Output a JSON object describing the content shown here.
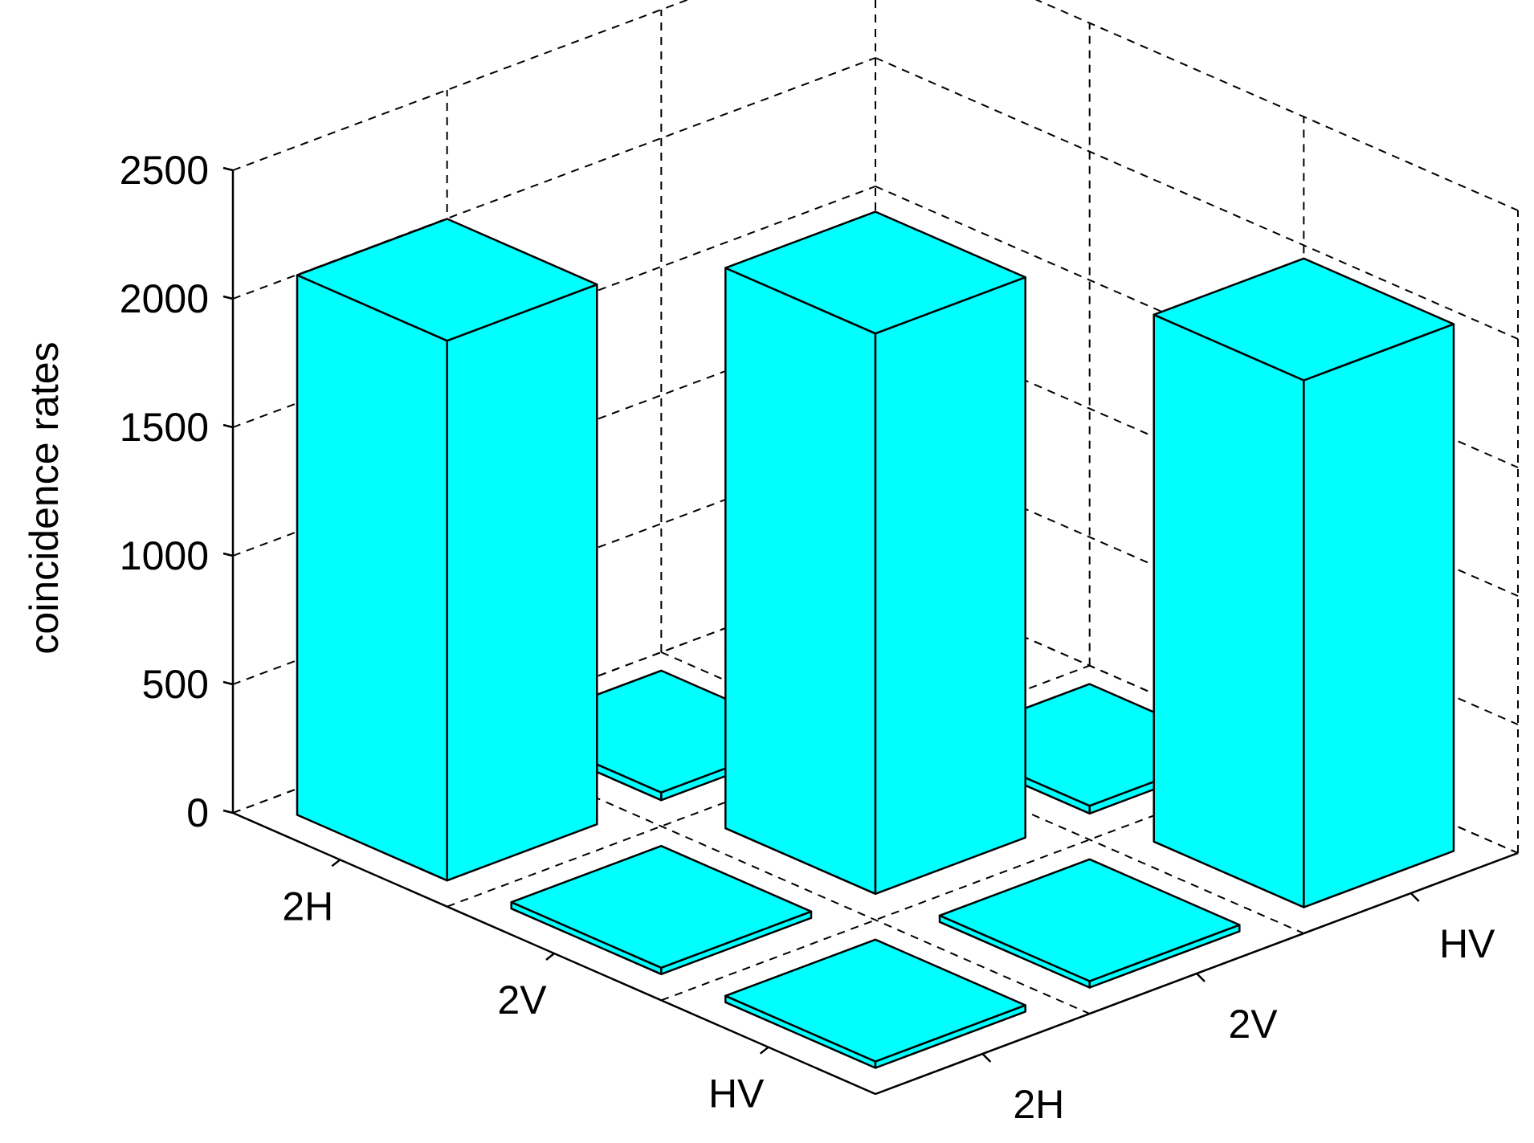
{
  "chart_data": {
    "type": "bar3d",
    "ylabel": "coincidence rates",
    "zlim": [
      0,
      2500
    ],
    "z_ticks": [
      0,
      500,
      1000,
      1500,
      2000,
      2500
    ],
    "row_labels": [
      "2H",
      "2V",
      "HV"
    ],
    "col_labels": [
      "2H",
      "2V",
      "HV"
    ],
    "values": [
      [
        2100,
        30,
        20
      ],
      [
        25,
        2180,
        30
      ],
      [
        25,
        25,
        2050
      ]
    ],
    "bar_color": "#00ffff",
    "grid": true
  }
}
